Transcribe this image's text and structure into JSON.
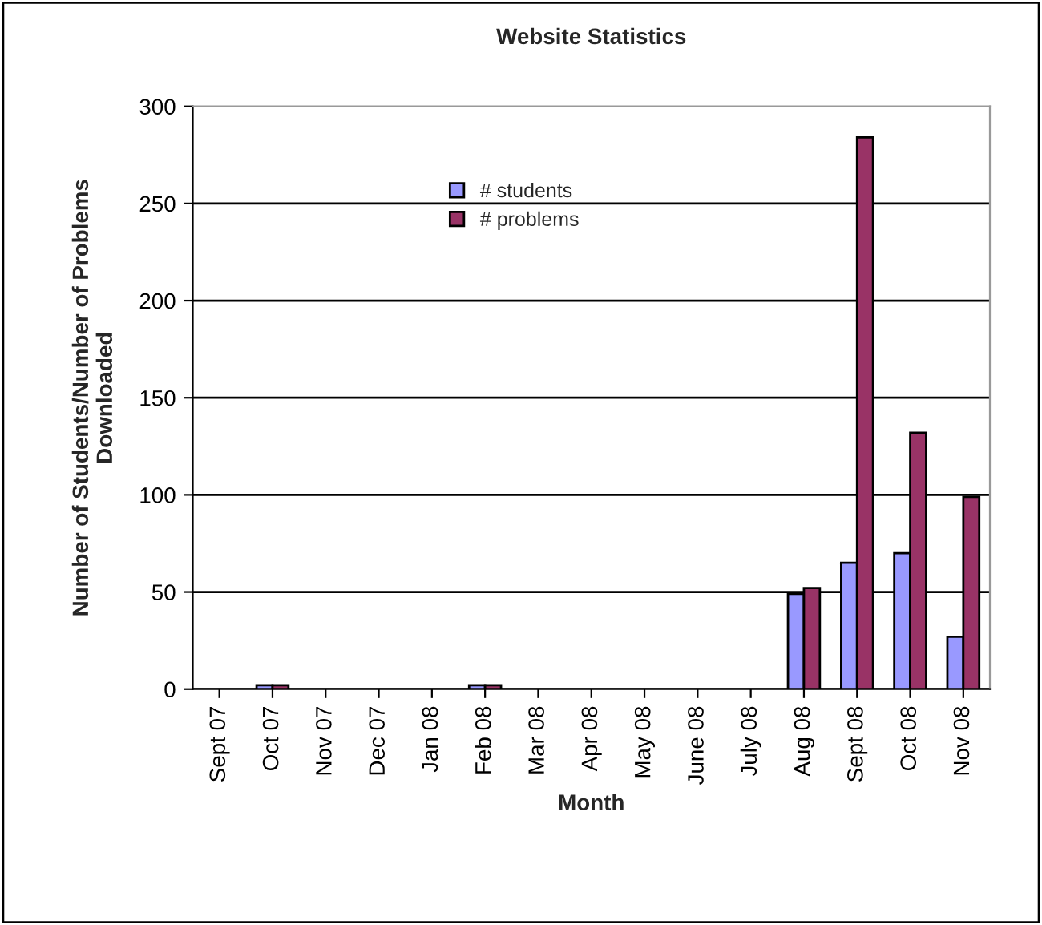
{
  "chart_data": {
    "type": "bar",
    "title": "Website Statistics",
    "xlabel": "Month",
    "ylabel": "Number of Students/Number of Problems\nDownloaded",
    "categories": [
      "Sept 07",
      "Oct 07",
      "Nov 07",
      "Dec 07",
      "Jan 08",
      "Feb 08",
      "Mar 08",
      "Apr 08",
      "May 08",
      "June 08",
      "July 08",
      "Aug 08",
      "Sept 08",
      "Oct 08",
      "Nov 08"
    ],
    "series": [
      {
        "name": "# students",
        "color": "#9999ff",
        "values": [
          null,
          2,
          null,
          null,
          null,
          2,
          null,
          null,
          null,
          null,
          null,
          49,
          65,
          70,
          27
        ]
      },
      {
        "name": "# problems",
        "color": "#993366",
        "values": [
          null,
          2,
          null,
          null,
          null,
          2,
          null,
          null,
          null,
          null,
          null,
          52,
          284,
          132,
          99
        ]
      }
    ],
    "ylim": [
      0,
      300
    ],
    "yticks": [
      0,
      50,
      100,
      150,
      200,
      250,
      300
    ],
    "grid": "y",
    "legend": "top left"
  }
}
